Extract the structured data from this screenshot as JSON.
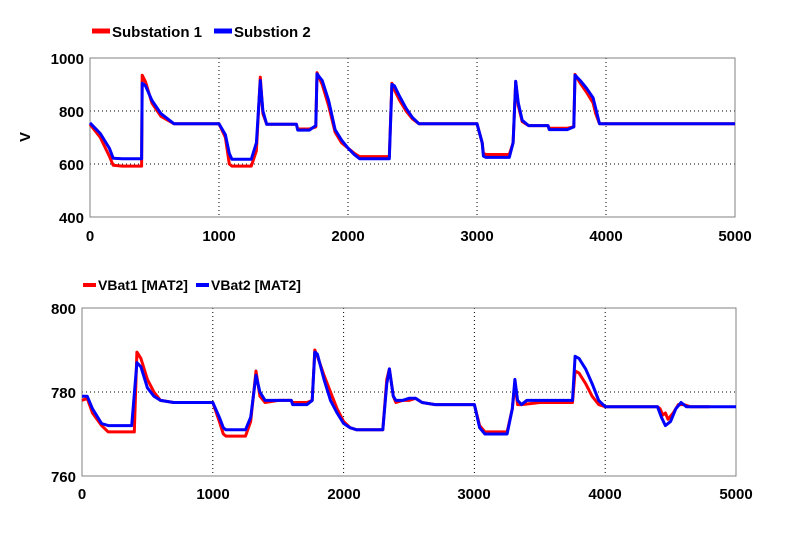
{
  "chart_data": [
    {
      "type": "line",
      "title": "",
      "xlabel": "",
      "ylabel": "V",
      "xlim": [
        0,
        5000
      ],
      "ylim": [
        400,
        1000
      ],
      "xticks": [
        "0",
        "1000",
        "2000",
        "3000",
        "4000",
        "5000"
      ],
      "yticks": [
        "400",
        "600",
        "800",
        "1000"
      ],
      "grid": true,
      "legend_position": "top-left",
      "series": [
        {
          "name": "Substation 1",
          "color": "#ff0000",
          "points": [
            [
              0,
              750
            ],
            [
              80,
              700
            ],
            [
              150,
              630
            ],
            [
              180,
              595
            ],
            [
              250,
              592
            ],
            [
              400,
              592
            ],
            [
              405,
              935
            ],
            [
              430,
              910
            ],
            [
              480,
              830
            ],
            [
              550,
              780
            ],
            [
              650,
              752
            ],
            [
              1000,
              752
            ],
            [
              1050,
              700
            ],
            [
              1080,
              600
            ],
            [
              1100,
              592
            ],
            [
              1250,
              592
            ],
            [
              1290,
              650
            ],
            [
              1320,
              928
            ],
            [
              1340,
              790
            ],
            [
              1370,
              750
            ],
            [
              1600,
              750
            ],
            [
              1610,
              732
            ],
            [
              1700,
              732
            ],
            [
              1750,
              740
            ],
            [
              1760,
              945
            ],
            [
              1800,
              900
            ],
            [
              1850,
              820
            ],
            [
              1900,
              720
            ],
            [
              1950,
              680
            ],
            [
              2000,
              660
            ],
            [
              2050,
              640
            ],
            [
              2090,
              628
            ],
            [
              2320,
              628
            ],
            [
              2340,
              905
            ],
            [
              2360,
              880
            ],
            [
              2400,
              840
            ],
            [
              2450,
              800
            ],
            [
              2500,
              770
            ],
            [
              2550,
              752
            ],
            [
              3000,
              752
            ],
            [
              3040,
              680
            ],
            [
              3050,
              640
            ],
            [
              3070,
              636
            ],
            [
              3250,
              636
            ],
            [
              3280,
              680
            ],
            [
              3300,
              910
            ],
            [
              3320,
              820
            ],
            [
              3350,
              760
            ],
            [
              3400,
              745
            ],
            [
              3550,
              745
            ],
            [
              3560,
              735
            ],
            [
              3700,
              735
            ],
            [
              3750,
              740
            ],
            [
              3760,
              938
            ],
            [
              3800,
              905
            ],
            [
              3850,
              870
            ],
            [
              3900,
              830
            ],
            [
              3920,
              790
            ],
            [
              3950,
              752
            ],
            [
              5000,
              752
            ]
          ]
        },
        {
          "name": "Substion 2",
          "color": "#0000ff",
          "points": [
            [
              0,
              755
            ],
            [
              80,
              715
            ],
            [
              150,
              660
            ],
            [
              180,
              622
            ],
            [
              250,
              620
            ],
            [
              400,
              620
            ],
            [
              405,
              905
            ],
            [
              430,
              895
            ],
            [
              480,
              840
            ],
            [
              550,
              790
            ],
            [
              650,
              752
            ],
            [
              1000,
              752
            ],
            [
              1050,
              710
            ],
            [
              1080,
              640
            ],
            [
              1100,
              618
            ],
            [
              1250,
              618
            ],
            [
              1290,
              680
            ],
            [
              1320,
              915
            ],
            [
              1340,
              800
            ],
            [
              1370,
              750
            ],
            [
              1600,
              750
            ],
            [
              1610,
              728
            ],
            [
              1700,
              728
            ],
            [
              1750,
              745
            ],
            [
              1760,
              940
            ],
            [
              1800,
              915
            ],
            [
              1850,
              840
            ],
            [
              1900,
              730
            ],
            [
              1950,
              690
            ],
            [
              2000,
              660
            ],
            [
              2050,
              635
            ],
            [
              2090,
              620
            ],
            [
              2320,
              620
            ],
            [
              2340,
              900
            ],
            [
              2360,
              895
            ],
            [
              2400,
              855
            ],
            [
              2450,
              810
            ],
            [
              2500,
              775
            ],
            [
              2550,
              752
            ],
            [
              3000,
              752
            ],
            [
              3040,
              680
            ],
            [
              3050,
              630
            ],
            [
              3070,
              625
            ],
            [
              3250,
              625
            ],
            [
              3280,
              680
            ],
            [
              3300,
              912
            ],
            [
              3320,
              830
            ],
            [
              3350,
              765
            ],
            [
              3400,
              745
            ],
            [
              3550,
              745
            ],
            [
              3560,
              730
            ],
            [
              3700,
              730
            ],
            [
              3750,
              740
            ],
            [
              3760,
              935
            ],
            [
              3800,
              915
            ],
            [
              3850,
              885
            ],
            [
              3900,
              850
            ],
            [
              3920,
              810
            ],
            [
              3950,
              752
            ],
            [
              5000,
              752
            ]
          ]
        }
      ]
    },
    {
      "type": "line",
      "title": "",
      "xlabel": "",
      "ylabel": "",
      "xlim": [
        0,
        5000
      ],
      "ylim": [
        760,
        800
      ],
      "xticks": [
        "0",
        "1000",
        "2000",
        "3000",
        "4000",
        "5000"
      ],
      "yticks": [
        "760",
        "780",
        "800"
      ],
      "grid": true,
      "legend_position": "top-left",
      "series": [
        {
          "name": "VBat1 [MAT2]",
          "color": "#ff0000",
          "points": [
            [
              0,
              778
            ],
            [
              40,
              778.5
            ],
            [
              80,
              775
            ],
            [
              150,
              772
            ],
            [
              200,
              770.5
            ],
            [
              400,
              770.5
            ],
            [
              420,
              789.5
            ],
            [
              450,
              788
            ],
            [
              500,
              783
            ],
            [
              550,
              780
            ],
            [
              600,
              778
            ],
            [
              700,
              777.5
            ],
            [
              1000,
              777.5
            ],
            [
              1050,
              773
            ],
            [
              1080,
              770
            ],
            [
              1100,
              769.5
            ],
            [
              1250,
              769.5
            ],
            [
              1290,
              773
            ],
            [
              1330,
              785
            ],
            [
              1360,
              779
            ],
            [
              1400,
              777.5
            ],
            [
              1500,
              778
            ],
            [
              1600,
              778
            ],
            [
              1610,
              777.5
            ],
            [
              1720,
              777.5
            ],
            [
              1760,
              778
            ],
            [
              1780,
              790
            ],
            [
              1800,
              788.5
            ],
            [
              1850,
              784
            ],
            [
              1900,
              780
            ],
            [
              1950,
              776
            ],
            [
              2000,
              773
            ],
            [
              2050,
              771.5
            ],
            [
              2100,
              771
            ],
            [
              2300,
              771
            ],
            [
              2330,
              783
            ],
            [
              2350,
              785.5
            ],
            [
              2380,
              779
            ],
            [
              2400,
              777.5
            ],
            [
              2450,
              778
            ],
            [
              2500,
              778
            ],
            [
              2550,
              778.5
            ],
            [
              2600,
              777.5
            ],
            [
              2700,
              777
            ],
            [
              3000,
              777
            ],
            [
              3040,
              772
            ],
            [
              3080,
              770.5
            ],
            [
              3250,
              770.5
            ],
            [
              3290,
              776
            ],
            [
              3310,
              782
            ],
            [
              3330,
              777
            ],
            [
              3360,
              777
            ],
            [
              3500,
              777.5
            ],
            [
              3700,
              777.5
            ],
            [
              3750,
              777.5
            ],
            [
              3770,
              785
            ],
            [
              3800,
              784.5
            ],
            [
              3850,
              782
            ],
            [
              3900,
              779
            ],
            [
              3950,
              777
            ],
            [
              4000,
              776.5
            ],
            [
              4400,
              776.5
            ],
            [
              4420,
              776
            ],
            [
              4440,
              774.5
            ],
            [
              4460,
              775
            ],
            [
              4480,
              773.5
            ],
            [
              4520,
              775
            ],
            [
              4560,
              777
            ],
            [
              4600,
              777
            ],
            [
              4650,
              776.5
            ],
            [
              4700,
              776.5
            ],
            [
              4800,
              776.5
            ]
          ]
        },
        {
          "name": "VBat2 [MAT2]",
          "color": "#0000ff",
          "points": [
            [
              0,
              779
            ],
            [
              40,
              779
            ],
            [
              80,
              776
            ],
            [
              150,
              772.5
            ],
            [
              200,
              772
            ],
            [
              380,
              772
            ],
            [
              420,
              787
            ],
            [
              450,
              786
            ],
            [
              500,
              781
            ],
            [
              550,
              779
            ],
            [
              600,
              778
            ],
            [
              700,
              777.5
            ],
            [
              1000,
              777.5
            ],
            [
              1050,
              774
            ],
            [
              1080,
              771.5
            ],
            [
              1100,
              771
            ],
            [
              1250,
              771
            ],
            [
              1290,
              774
            ],
            [
              1330,
              784
            ],
            [
              1360,
              780
            ],
            [
              1400,
              778
            ],
            [
              1500,
              778
            ],
            [
              1600,
              778
            ],
            [
              1610,
              777
            ],
            [
              1720,
              777
            ],
            [
              1760,
              778
            ],
            [
              1780,
              789.5
            ],
            [
              1800,
              789
            ],
            [
              1850,
              783
            ],
            [
              1900,
              778
            ],
            [
              1950,
              775
            ],
            [
              2000,
              772.5
            ],
            [
              2050,
              771.5
            ],
            [
              2100,
              771
            ],
            [
              2300,
              771
            ],
            [
              2330,
              782
            ],
            [
              2350,
              785.5
            ],
            [
              2380,
              779
            ],
            [
              2400,
              778
            ],
            [
              2450,
              778
            ],
            [
              2500,
              778.5
            ],
            [
              2550,
              778.5
            ],
            [
              2600,
              777.5
            ],
            [
              2700,
              777
            ],
            [
              3000,
              777
            ],
            [
              3040,
              771.5
            ],
            [
              3080,
              770
            ],
            [
              3250,
              770
            ],
            [
              3290,
              776
            ],
            [
              3310,
              783
            ],
            [
              3330,
              778
            ],
            [
              3360,
              777
            ],
            [
              3400,
              778
            ],
            [
              3700,
              778
            ],
            [
              3750,
              778
            ],
            [
              3770,
              788.5
            ],
            [
              3800,
              788
            ],
            [
              3850,
              785.5
            ],
            [
              3900,
              782
            ],
            [
              3950,
              778
            ],
            [
              4000,
              776.5
            ],
            [
              4400,
              776.5
            ],
            [
              4430,
              774
            ],
            [
              4460,
              772
            ],
            [
              4500,
              773
            ],
            [
              4540,
              776
            ],
            [
              4580,
              777.5
            ],
            [
              4620,
              776.5
            ],
            [
              4700,
              776.5
            ],
            [
              5000,
              776.5
            ]
          ]
        }
      ]
    }
  ]
}
